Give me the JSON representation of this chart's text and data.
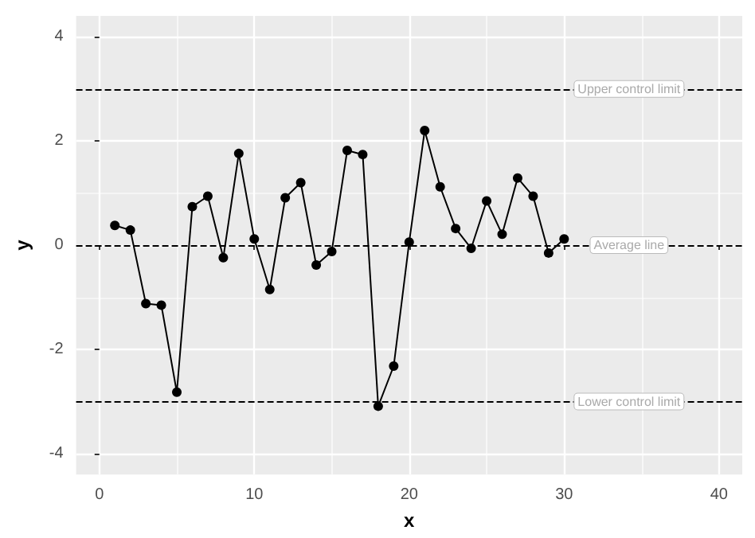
{
  "chart_data": {
    "type": "line",
    "xlabel": "x",
    "ylabel": "y",
    "x": [
      1,
      2,
      3,
      4,
      5,
      6,
      7,
      8,
      9,
      10,
      11,
      12,
      13,
      14,
      15,
      16,
      17,
      18,
      19,
      20,
      21,
      22,
      23,
      24,
      25,
      26,
      27,
      28,
      29,
      30
    ],
    "series": [
      {
        "color": "#000000",
        "values": [
          0.38,
          0.29,
          -1.12,
          -1.15,
          -2.82,
          0.74,
          0.94,
          -0.24,
          1.76,
          0.12,
          -0.85,
          0.91,
          1.2,
          -0.38,
          -0.12,
          1.82,
          1.74,
          -3.09,
          -2.32,
          0.06,
          2.2,
          1.12,
          0.32,
          -0.06,
          0.85,
          0.21,
          1.29,
          0.94,
          -0.15,
          0.12
        ]
      }
    ],
    "xlim": [
      -1.5,
      41.5
    ],
    "xticks": [
      0,
      10,
      20,
      30,
      40
    ],
    "ylim": [
      -4.4,
      4.4
    ],
    "yticks": [
      -4,
      -2,
      0,
      2,
      4
    ],
    "ref_lines": [
      {
        "axis": "y",
        "value": 3,
        "label": "Upper control limit",
        "line_style": "dashed"
      },
      {
        "axis": "y",
        "value": 0,
        "label": "Average line",
        "line_style": "dashed"
      },
      {
        "axis": "y",
        "value": -3,
        "label": "Lower control limit",
        "line_style": "dashed"
      }
    ],
    "grid": true,
    "marker": "circle",
    "line_style": "solid"
  }
}
